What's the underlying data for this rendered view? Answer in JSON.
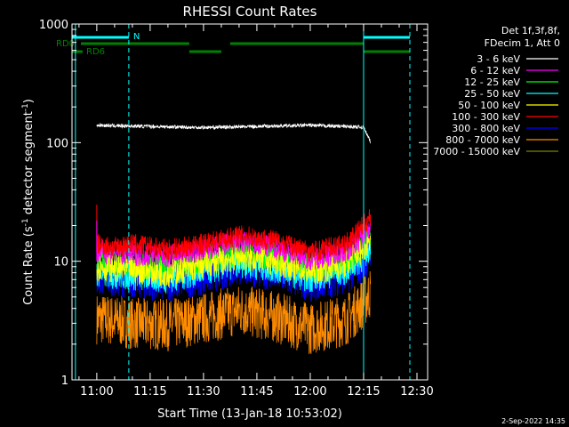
{
  "chart_data": {
    "type": "line",
    "title": "RHESSI Count Rates",
    "xlabel": "Start Time (13-Jan-18 10:53:02)",
    "ylabel_main": "Count Rate (s",
    "ylabel_sup1": "-1",
    "ylabel_mid": " detector segment",
    "ylabel_sup2": "-1",
    "ylabel_end": ")",
    "y_scale": "log",
    "ylim": [
      1,
      1000
    ],
    "xlim": [
      "10:53:02",
      "12:33:00"
    ],
    "x_ticks": [
      "11:00",
      "11:15",
      "11:30",
      "11:45",
      "12:00",
      "12:15",
      "12:30"
    ],
    "y_ticks": [
      "1",
      "10",
      "100",
      "1000"
    ],
    "legend": {
      "placement": "right",
      "header1": "Det 1f,3f,8f,",
      "header2": "FDecim 1, Att 0"
    },
    "series": [
      {
        "name": "3 - 6 keV",
        "color": "#ffffff",
        "x": [
          "11:00",
          "11:15",
          "11:30",
          "11:45",
          "12:00",
          "12:15",
          "12:17"
        ],
        "values": [
          140,
          137,
          134,
          137,
          140,
          135,
          100
        ]
      },
      {
        "name": "6 - 12 keV",
        "color": "#ff00ff",
        "x": [
          "11:00",
          "11:10",
          "11:20",
          "11:30",
          "11:40",
          "11:50",
          "12:00",
          "12:10",
          "12:15",
          "12:17"
        ],
        "values": [
          12,
          11.5,
          11,
          12.5,
          14.5,
          13,
          10.5,
          12,
          16,
          20
        ]
      },
      {
        "name": "12 - 25 keV",
        "color": "#00ff00",
        "x": [
          "11:00",
          "11:10",
          "11:20",
          "11:30",
          "11:40",
          "11:50",
          "12:00",
          "12:10",
          "12:15",
          "12:17"
        ],
        "values": [
          10,
          9.5,
          9,
          10.5,
          12,
          11,
          9,
          10.5,
          14,
          18
        ]
      },
      {
        "name": "25 - 50 keV",
        "color": "#00ffff",
        "x": [
          "11:00",
          "11:10",
          "11:20",
          "11:30",
          "11:40",
          "11:50",
          "12:00",
          "12:10",
          "12:15",
          "12:17"
        ],
        "values": [
          8,
          7.6,
          7.2,
          8.3,
          9.8,
          8.8,
          7.3,
          8.5,
          11,
          14
        ]
      },
      {
        "name": "50 - 100 keV",
        "color": "#ffff00",
        "x": [
          "11:00",
          "11:10",
          "11:20",
          "11:30",
          "11:40",
          "11:50",
          "12:00",
          "12:10",
          "12:15",
          "12:17"
        ],
        "values": [
          9,
          8.5,
          8,
          9.3,
          11,
          10,
          8.2,
          9.5,
          13,
          16
        ]
      },
      {
        "name": "100 - 300 keV",
        "color": "#ff0000",
        "x": [
          "11:00",
          "11:05",
          "11:10",
          "11:20",
          "11:30",
          "11:40",
          "11:50",
          "12:00",
          "12:10",
          "12:15",
          "12:17"
        ],
        "values": [
          14,
          13,
          14,
          12.5,
          14,
          16.5,
          15,
          12,
          14,
          20,
          24
        ]
      },
      {
        "name": "300 - 800 keV",
        "color": "#0000ff",
        "x": [
          "11:00",
          "11:10",
          "11:20",
          "11:30",
          "11:40",
          "11:50",
          "12:00",
          "12:10",
          "12:15",
          "12:17"
        ],
        "values": [
          7.5,
          7,
          6.5,
          7.5,
          9,
          8,
          6.5,
          7.5,
          9.5,
          11.5
        ]
      },
      {
        "name": "800 - 7000 keV",
        "color": "#ff8c00",
        "x": [
          "11:00",
          "11:10",
          "11:20",
          "11:30",
          "11:40",
          "11:50",
          "12:00",
          "12:10",
          "12:15",
          "12:17"
        ],
        "values": [
          3.3,
          3.0,
          2.9,
          3.3,
          3.9,
          3.4,
          2.7,
          3.2,
          4.5,
          5.5
        ]
      },
      {
        "name": "7000 - 15000 keV",
        "color": "#808000",
        "x": [],
        "values": []
      }
    ],
    "annotations": {
      "rd0_label": "RD0",
      "rd6_label": "RD6",
      "n_label": "N",
      "timestamp": "2-Sep-2022 14:35"
    }
  }
}
